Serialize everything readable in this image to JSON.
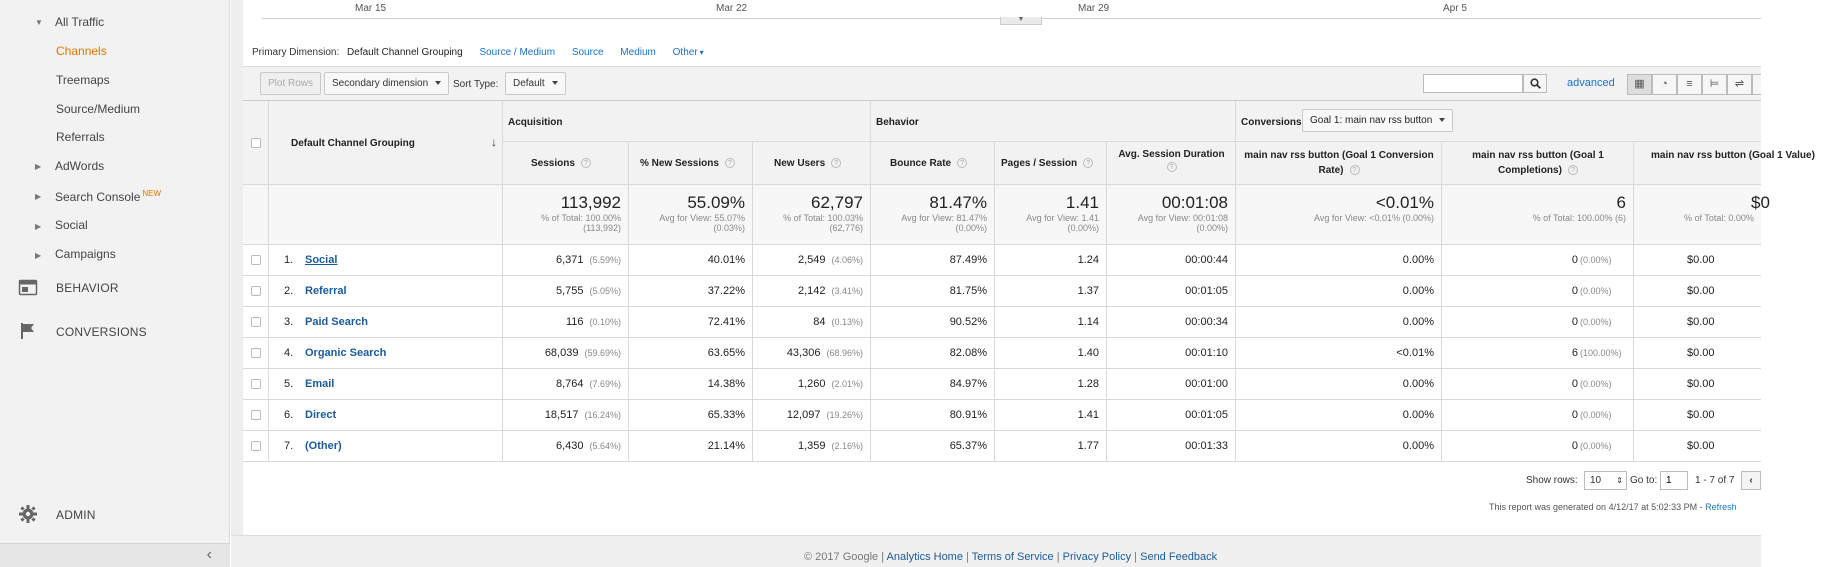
{
  "sidebar": {
    "all_traffic": "All Traffic",
    "items": [
      {
        "label": "Channels",
        "active": true
      },
      {
        "label": "Treemaps"
      },
      {
        "label": "Source/Medium"
      },
      {
        "label": "Referrals"
      }
    ],
    "adwords": "AdWords",
    "search_console": "Search Console",
    "search_console_badge": "NEW",
    "social": "Social",
    "campaigns": "Campaigns",
    "behavior": "BEHAVIOR",
    "conversions": "CONVERSIONS",
    "admin": "ADMIN",
    "collapse_glyph": "‹"
  },
  "timeline": {
    "labels": [
      "Mar 15",
      "Mar 22",
      "Mar 29",
      "Apr 5"
    ]
  },
  "primary_dimension": {
    "label": "Primary Dimension:",
    "current": "Default Channel Grouping",
    "options": [
      "Source / Medium",
      "Source",
      "Medium",
      "Other"
    ]
  },
  "toolbar": {
    "plot_rows": "Plot Rows",
    "secondary_dimension": "Secondary dimension",
    "sort_type_label": "Sort Type:",
    "sort_type_value": "Default",
    "search_value": "",
    "advanced": "advanced"
  },
  "table": {
    "dimension_header": "Default Channel Grouping",
    "group_headers": {
      "acquisition": "Acquisition",
      "behavior": "Behavior",
      "conversions": "Conversions"
    },
    "goal_select": "Goal 1: main nav rss button",
    "columns": {
      "sessions": "Sessions",
      "new_sessions": "% New Sessions",
      "new_users": "New Users",
      "bounce_rate": "Bounce Rate",
      "pages_session": "Pages / Session",
      "avg_duration": "Avg. Session Duration",
      "conv_rate": "main nav rss button (Goal 1 Conversion Rate)",
      "completions": "main nav rss button (Goal 1 Completions)",
      "value": "main nav rss button (Goal 1 Value)"
    },
    "totals": {
      "sessions": {
        "big": "113,992",
        "sub1": "% of Total: 100.00%",
        "sub2": "(113,992)"
      },
      "new_sessions": {
        "big": "55.09%",
        "sub1": "Avg for View: 55.07%",
        "sub2": "(0.03%)"
      },
      "new_users": {
        "big": "62,797",
        "sub1": "% of Total: 100.03%",
        "sub2": "(62,776)"
      },
      "bounce_rate": {
        "big": "81.47%",
        "sub1": "Avg for View: 81.47%",
        "sub2": "(0.00%)"
      },
      "pages_session": {
        "big": "1.41",
        "sub1": "Avg for View: 1.41",
        "sub2": "(0.00%)"
      },
      "avg_duration": {
        "big": "00:01:08",
        "sub1": "Avg for View: 00:01:08",
        "sub2": "(0.00%)"
      },
      "conv_rate": {
        "big": "<0.01%",
        "sub1": "Avg for View: <0.01% (0.00%)",
        "sub2": ""
      },
      "completions": {
        "big": "6",
        "sub1": "% of Total: 100.00% (6)",
        "sub2": ""
      },
      "value": {
        "big": "$0",
        "sub1": "% of Total: 0.00%",
        "sub2": ""
      }
    },
    "rows": [
      {
        "num": "1.",
        "channel": "Social",
        "sessions": "6,371",
        "sessions_pct": "(5.59%)",
        "new_sessions": "40.01%",
        "new_users": "2,549",
        "new_users_pct": "(4.06%)",
        "bounce": "87.49%",
        "pages": "1.24",
        "duration": "00:00:44",
        "conv_rate": "0.00%",
        "completions": "0",
        "completions_pct": "(0.00%)",
        "value": "$0.00"
      },
      {
        "num": "2.",
        "channel": "Referral",
        "sessions": "5,755",
        "sessions_pct": "(5.05%)",
        "new_sessions": "37.22%",
        "new_users": "2,142",
        "new_users_pct": "(3.41%)",
        "bounce": "81.75%",
        "pages": "1.37",
        "duration": "00:01:05",
        "conv_rate": "0.00%",
        "completions": "0",
        "completions_pct": "(0.00%)",
        "value": "$0.00"
      },
      {
        "num": "3.",
        "channel": "Paid Search",
        "sessions": "116",
        "sessions_pct": "(0.10%)",
        "new_sessions": "72.41%",
        "new_users": "84",
        "new_users_pct": "(0.13%)",
        "bounce": "90.52%",
        "pages": "1.14",
        "duration": "00:00:34",
        "conv_rate": "0.00%",
        "completions": "0",
        "completions_pct": "(0.00%)",
        "value": "$0.00"
      },
      {
        "num": "4.",
        "channel": "Organic Search",
        "sessions": "68,039",
        "sessions_pct": "(59.69%)",
        "new_sessions": "63.65%",
        "new_users": "43,306",
        "new_users_pct": "(68.96%)",
        "bounce": "82.08%",
        "pages": "1.40",
        "duration": "00:01:10",
        "conv_rate": "<0.01%",
        "completions": "6",
        "completions_pct": "(100.00%)",
        "value": "$0.00"
      },
      {
        "num": "5.",
        "channel": "Email",
        "sessions": "8,764",
        "sessions_pct": "(7.69%)",
        "new_sessions": "14.38%",
        "new_users": "1,260",
        "new_users_pct": "(2.01%)",
        "bounce": "84.97%",
        "pages": "1.28",
        "duration": "00:01:00",
        "conv_rate": "0.00%",
        "completions": "0",
        "completions_pct": "(0.00%)",
        "value": "$0.00"
      },
      {
        "num": "6.",
        "channel": "Direct",
        "sessions": "18,517",
        "sessions_pct": "(16.24%)",
        "new_sessions": "65.33%",
        "new_users": "12,097",
        "new_users_pct": "(19.26%)",
        "bounce": "80.91%",
        "pages": "1.41",
        "duration": "00:01:05",
        "conv_rate": "0.00%",
        "completions": "0",
        "completions_pct": "(0.00%)",
        "value": "$0.00"
      },
      {
        "num": "7.",
        "channel": "(Other)",
        "sessions": "6,430",
        "sessions_pct": "(5.64%)",
        "new_sessions": "21.14%",
        "new_users": "1,359",
        "new_users_pct": "(2.16%)",
        "bounce": "65.37%",
        "pages": "1.77",
        "duration": "00:01:33",
        "conv_rate": "0.00%",
        "completions": "0",
        "completions_pct": "(0.00%)",
        "value": "$0.00"
      }
    ]
  },
  "pagination": {
    "show_rows_label": "Show rows:",
    "show_rows_value": "10",
    "goto_label": "Go to:",
    "goto_value": "1",
    "range": "1 - 7 of 7"
  },
  "report_generated": "This report was generated on 4/12/17 at 5:02:33 PM - ",
  "refresh": "Refresh",
  "footer": {
    "copyright": "© 2017 Google",
    "links": [
      "Analytics Home",
      "Terms of Service",
      "Privacy Policy",
      "Send Feedback"
    ]
  },
  "colors": {
    "accent": "#e37400",
    "link": "#1a73c8"
  }
}
